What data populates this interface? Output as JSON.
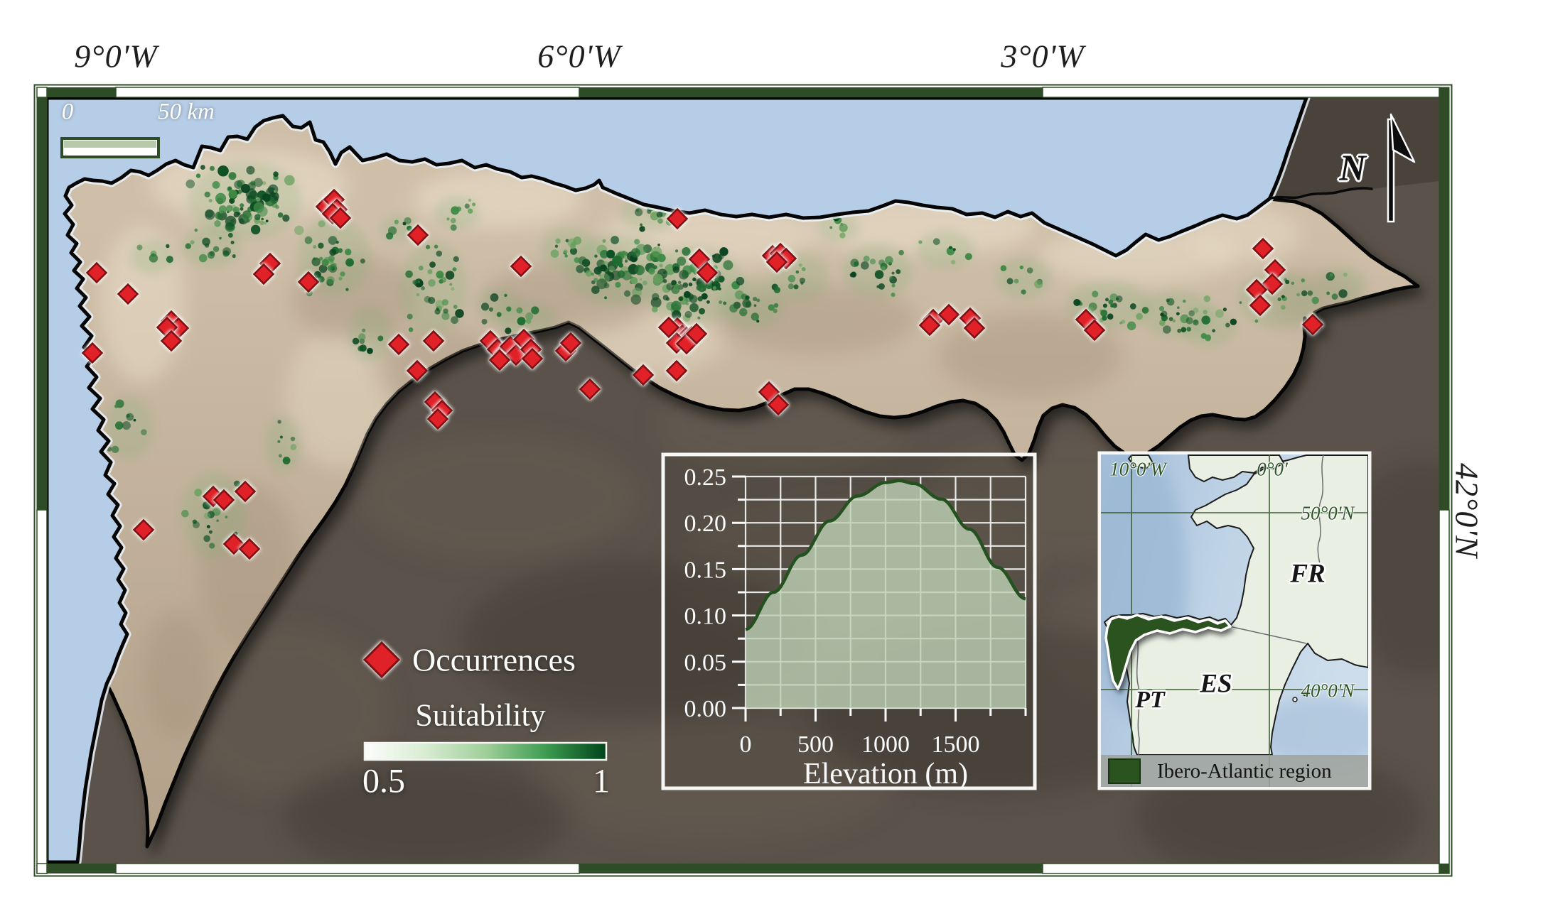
{
  "map": {
    "top_axis_labels": [
      "9°0'W",
      "6°0'W",
      "3°0'W"
    ],
    "right_axis_label": "42°0'N",
    "north_label": "N",
    "scale_bar": {
      "start_label": "0",
      "end_label": "50 km"
    },
    "legend": {
      "occurrences_label": "Occurrences",
      "suitability_label": "Suitability",
      "suitability_min": "0.5",
      "suitability_max": "1"
    },
    "colors": {
      "frame_green": "#2e4d27",
      "sea": "#b6cde7",
      "bright_land": "#c6b49e",
      "dark_land": "#5b534b",
      "occurrence_fill": "#e02128",
      "occurrence_stroke": "#7e1013",
      "suitability_low": "#fcfdfb",
      "suitability_high": "#00441b",
      "curve_green": "#24511f",
      "inset_region_green": "#2a5320"
    },
    "occurrences": [
      [
        136,
        384
      ],
      [
        180,
        414
      ],
      [
        130,
        497
      ],
      [
        241,
        452
      ],
      [
        251,
        462
      ],
      [
        235,
        461
      ],
      [
        241,
        480
      ],
      [
        459,
        291
      ],
      [
        470,
        281
      ],
      [
        474,
        295
      ],
      [
        468,
        301
      ],
      [
        479,
        307
      ],
      [
        380,
        371
      ],
      [
        371,
        386
      ],
      [
        434,
        397
      ],
      [
        588,
        331
      ],
      [
        561,
        485
      ],
      [
        587,
        522
      ],
      [
        610,
        480
      ],
      [
        202,
        746
      ],
      [
        300,
        699
      ],
      [
        315,
        704
      ],
      [
        345,
        692
      ],
      [
        329,
        766
      ],
      [
        351,
        773
      ],
      [
        612,
        566
      ],
      [
        622,
        578
      ],
      [
        616,
        590
      ],
      [
        733,
        375
      ],
      [
        690,
        480
      ],
      [
        700,
        492
      ],
      [
        710,
        498
      ],
      [
        718,
        488
      ],
      [
        726,
        500
      ],
      [
        737,
        478
      ],
      [
        747,
        492
      ],
      [
        703,
        507
      ],
      [
        749,
        505
      ],
      [
        796,
        494
      ],
      [
        803,
        483
      ],
      [
        830,
        548
      ],
      [
        905,
        528
      ],
      [
        952,
        522
      ],
      [
        953,
        308
      ],
      [
        984,
        365
      ],
      [
        995,
        384
      ],
      [
        1087,
        360
      ],
      [
        1098,
        357
      ],
      [
        1106,
        364
      ],
      [
        1093,
        369
      ],
      [
        953,
        462
      ],
      [
        960,
        472
      ],
      [
        966,
        475
      ],
      [
        973,
        474
      ],
      [
        952,
        483
      ],
      [
        966,
        484
      ],
      [
        980,
        470
      ],
      [
        941,
        461
      ],
      [
        1082,
        552
      ],
      [
        1095,
        570
      ],
      [
        1313,
        450
      ],
      [
        1335,
        443
      ],
      [
        1365,
        448
      ],
      [
        1371,
        462
      ],
      [
        1308,
        458
      ],
      [
        1528,
        450
      ],
      [
        1540,
        465
      ],
      [
        1777,
        350
      ],
      [
        1794,
        380
      ],
      [
        1790,
        400
      ],
      [
        1768,
        408
      ],
      [
        1773,
        430
      ],
      [
        1847,
        457
      ]
    ],
    "suitability_clusters": [
      [
        345,
        282,
        80,
        55,
        2
      ],
      [
        298,
        348,
        42,
        30,
        1
      ],
      [
        214,
        362,
        30,
        24,
        0
      ],
      [
        470,
        362,
        52,
        55,
        1
      ],
      [
        610,
        405,
        48,
        65,
        1
      ],
      [
        643,
        300,
        32,
        24,
        1
      ],
      [
        560,
        322,
        26,
        20,
        0
      ],
      [
        182,
        602,
        34,
        44,
        0
      ],
      [
        300,
        725,
        46,
        62,
        0
      ],
      [
        398,
        625,
        26,
        40,
        0
      ],
      [
        868,
        380,
        72,
        50,
        2
      ],
      [
        975,
        402,
        72,
        55,
        2
      ],
      [
        915,
        300,
        42,
        26,
        1
      ],
      [
        1058,
        428,
        46,
        36,
        1
      ],
      [
        1125,
        390,
        40,
        34,
        0
      ],
      [
        742,
        452,
        40,
        26,
        0
      ],
      [
        800,
        350,
        40,
        30,
        1
      ],
      [
        1235,
        382,
        50,
        38,
        1
      ],
      [
        1330,
        352,
        40,
        28,
        0
      ],
      [
        1440,
        392,
        40,
        30,
        0
      ],
      [
        1560,
        430,
        60,
        35,
        1
      ],
      [
        1655,
        442,
        52,
        34,
        1
      ],
      [
        1800,
        422,
        60,
        40,
        0
      ],
      [
        1888,
        400,
        34,
        24,
        0
      ],
      [
        520,
        470,
        30,
        40,
        0
      ],
      [
        700,
        430,
        30,
        25,
        0
      ],
      [
        1180,
        320,
        30,
        20,
        0
      ],
      [
        1700,
        460,
        40,
        28,
        1
      ]
    ]
  },
  "chart_data": {
    "type": "area",
    "title": "",
    "xlabel": "Elevation (m)",
    "ylabel": "",
    "x": [
      0,
      200,
      400,
      600,
      800,
      1000,
      1100,
      1200,
      1400,
      1600,
      1800,
      2000
    ],
    "y": [
      0.085,
      0.125,
      0.165,
      0.202,
      0.229,
      0.2435,
      0.2455,
      0.2425,
      0.2255,
      0.193,
      0.152,
      0.118
    ],
    "xlim": [
      0,
      2000
    ],
    "ylim": [
      0,
      0.25
    ],
    "xticks": [
      0,
      500,
      1000,
      1500
    ],
    "xtick_labels": [
      "0",
      "500",
      "1000",
      "1500"
    ],
    "yticks": [
      0,
      0.05,
      0.1,
      0.15,
      0.2,
      0.25
    ],
    "ytick_labels": [
      "0.00",
      "0.05",
      "0.10",
      "0.15",
      "0.20",
      "0.25"
    ],
    "minor_x": 250,
    "minor_y": 0.025,
    "grid": true,
    "line_color": "#24511f",
    "fill_color": "#bdd0b5"
  },
  "inset": {
    "grid_labels": {
      "lon_w": "10°0'W",
      "lon_0": "0°0'",
      "lat_50": "50°0'N",
      "lat_40": "40°0'N"
    },
    "country_labels": {
      "fr": "FR",
      "es": "ES",
      "pt": "PT"
    },
    "legend_label": "Ibero-Atlantic region"
  }
}
